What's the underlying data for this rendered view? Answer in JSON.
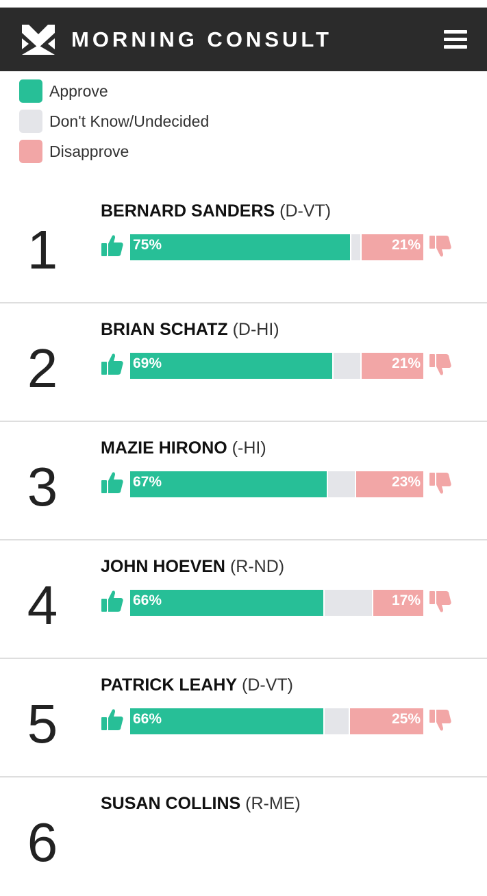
{
  "header": {
    "brand": "MORNING CONSULT",
    "logo_icon": "morning-consult-logo-icon",
    "menu_icon": "hamburger-menu-icon"
  },
  "colors": {
    "header_bg": "#2b2b2b",
    "approve": "#27bf97",
    "undecided": "#e4e5e9",
    "disapprove": "#f2a6a6"
  },
  "legend": [
    {
      "label": "Approve",
      "color": "#27bf97"
    },
    {
      "label": "Don't Know/Undecided",
      "color": "#e4e5e9"
    },
    {
      "label": "Disapprove",
      "color": "#f2a6a6"
    }
  ],
  "senators": [
    {
      "rank": "1",
      "name": "BERNARD SANDERS",
      "party": "(D-VT)",
      "approve": 75,
      "disapprove": 21,
      "approve_label": "75%",
      "disapprove_label": "21%"
    },
    {
      "rank": "2",
      "name": "BRIAN SCHATZ",
      "party": "(D-HI)",
      "approve": 69,
      "disapprove": 21,
      "approve_label": "69%",
      "disapprove_label": "21%"
    },
    {
      "rank": "3",
      "name": "MAZIE HIRONO",
      "party": "(-HI)",
      "approve": 67,
      "disapprove": 23,
      "approve_label": "67%",
      "disapprove_label": "23%"
    },
    {
      "rank": "4",
      "name": "JOHN HOEVEN",
      "party": "(R-ND)",
      "approve": 66,
      "disapprove": 17,
      "approve_label": "66%",
      "disapprove_label": "17%"
    },
    {
      "rank": "5",
      "name": "PATRICK LEAHY",
      "party": "(D-VT)",
      "approve": 66,
      "disapprove": 25,
      "approve_label": "66%",
      "disapprove_label": "25%"
    },
    {
      "rank": "6",
      "name": "SUSAN COLLINS",
      "party": "(R-ME)",
      "approve": null,
      "disapprove": null,
      "approve_label": "",
      "disapprove_label": ""
    }
  ]
}
